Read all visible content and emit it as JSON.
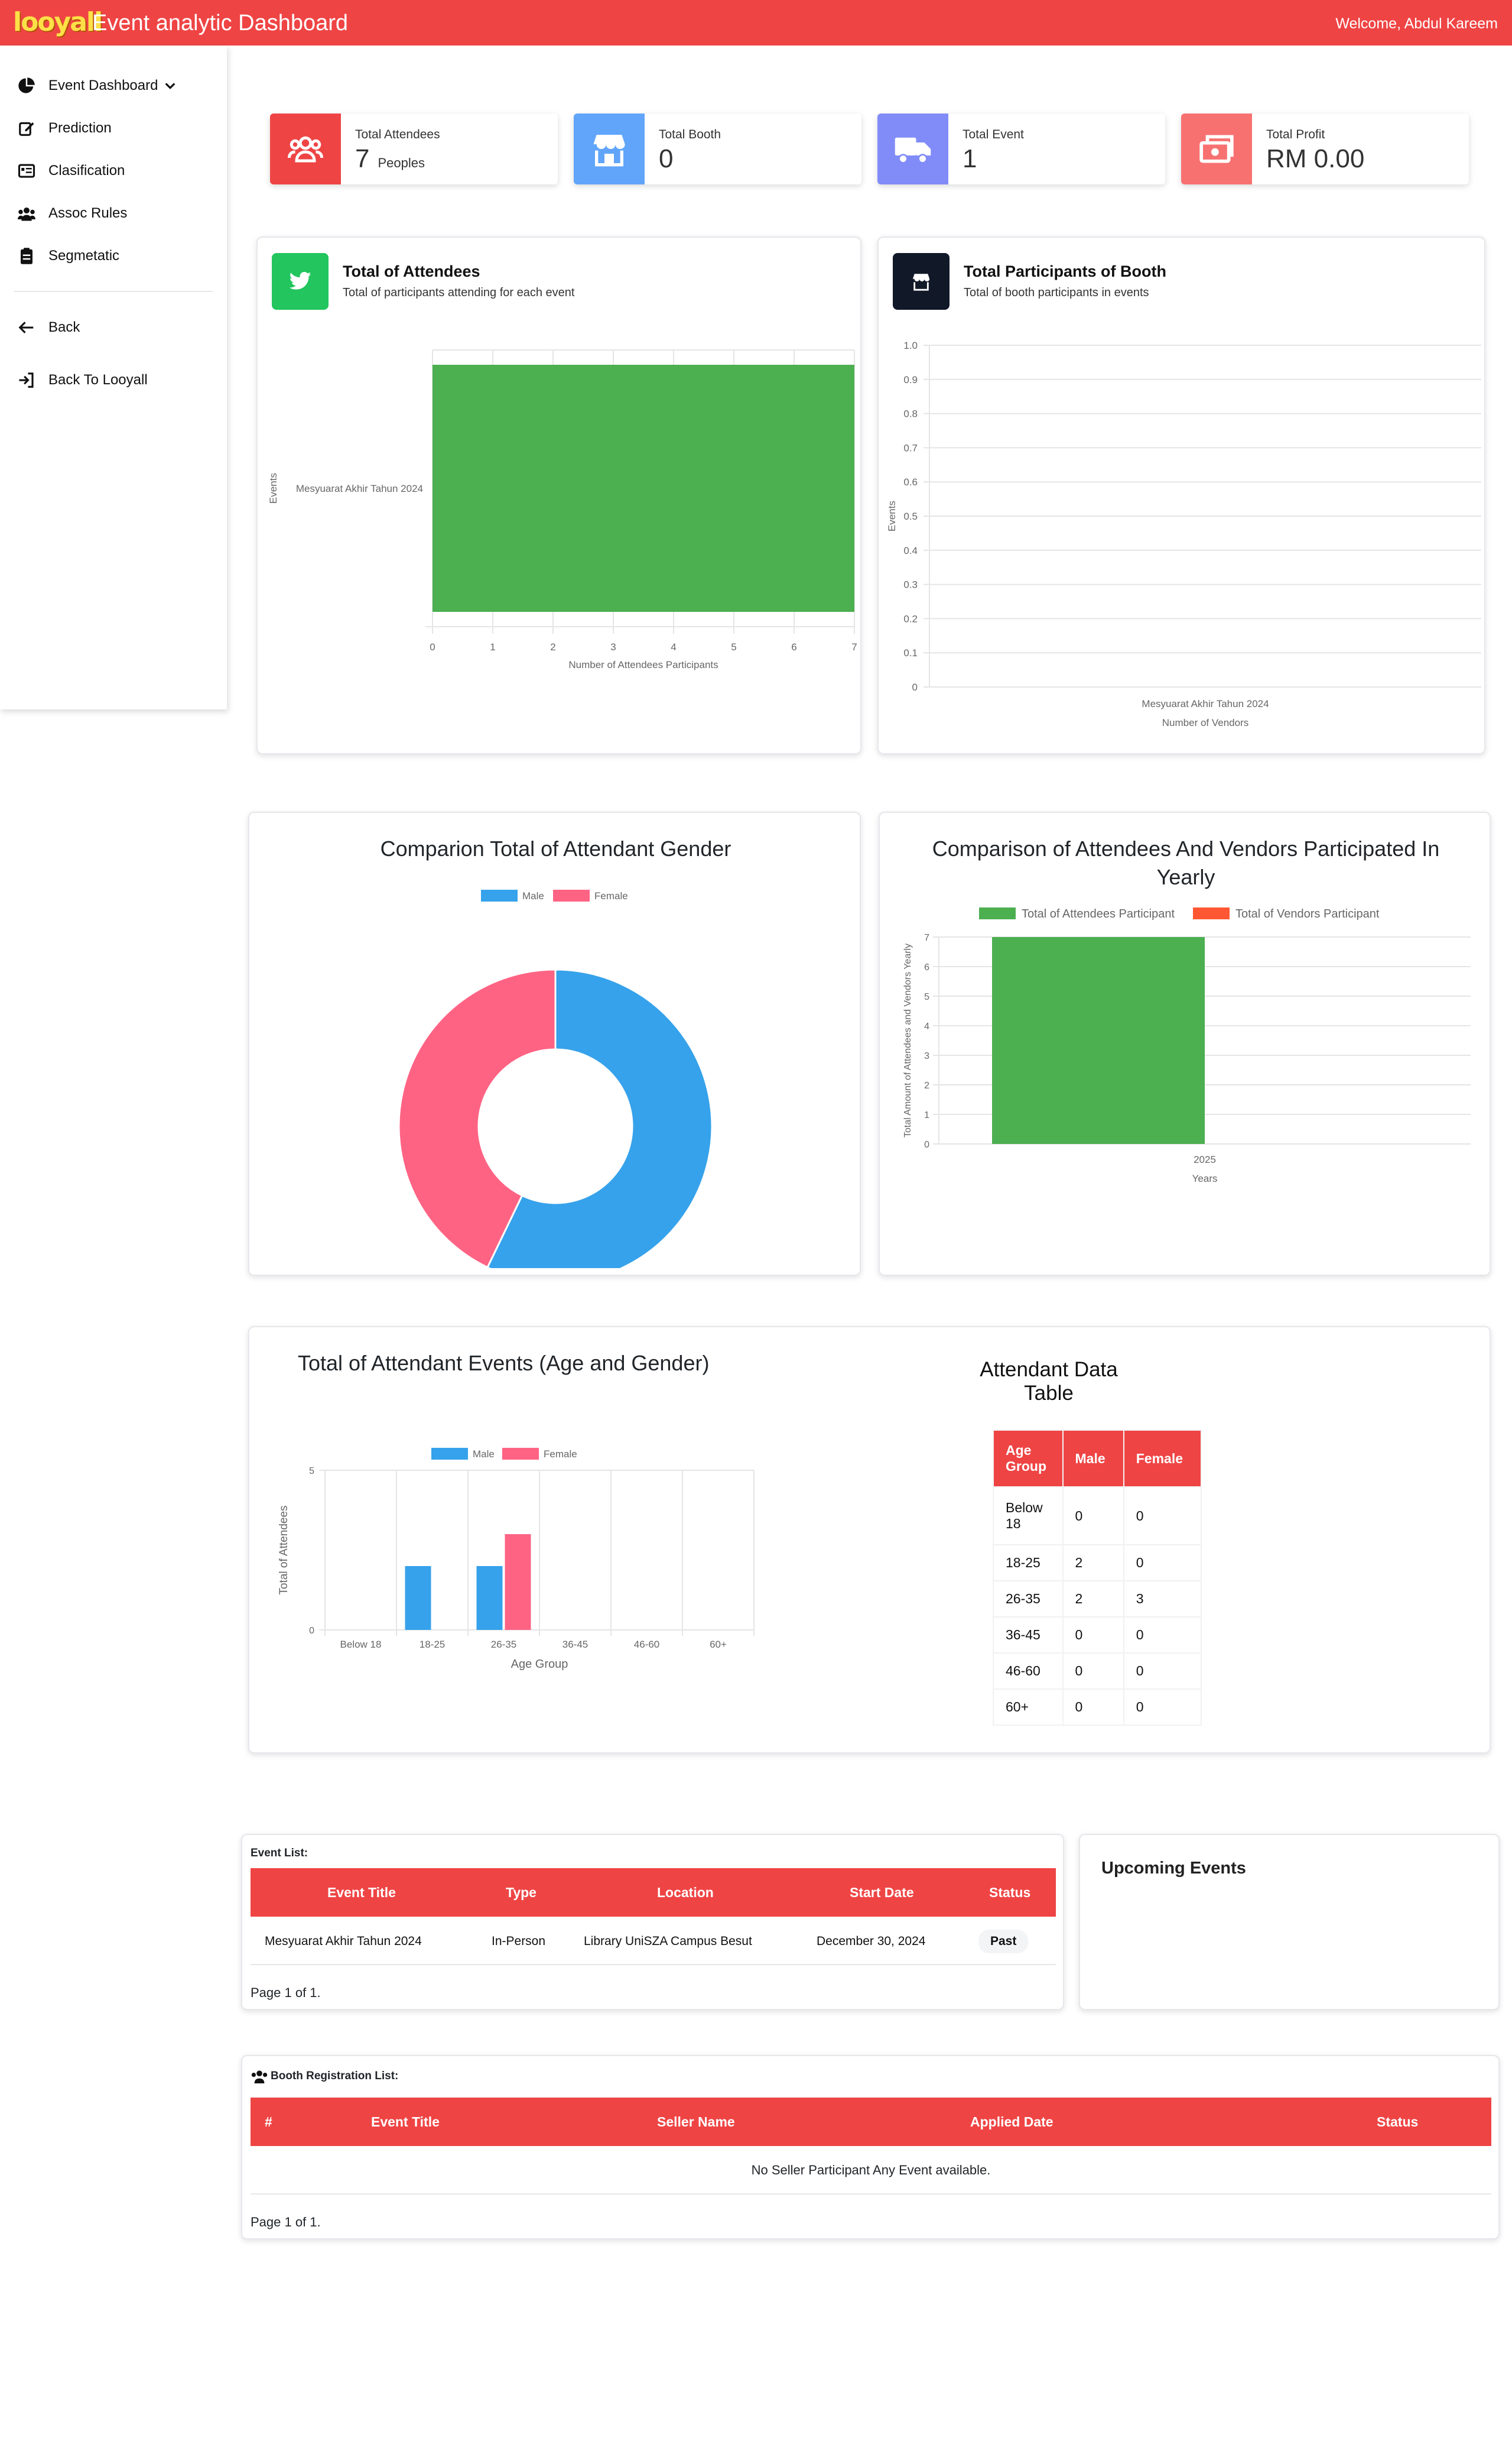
{
  "header": {
    "logo": "looyall",
    "title": "Event analytic Dashboard",
    "welcome": "Welcome, Abdul Kareem"
  },
  "sidebar": {
    "items": [
      {
        "label": "Event Dashboard",
        "icon": "pie-chart-icon"
      },
      {
        "label": "Prediction",
        "icon": "edit-icon"
      },
      {
        "label": "Clasification",
        "icon": "card-list-icon"
      },
      {
        "label": "Assoc Rules",
        "icon": "users-icon"
      },
      {
        "label": "Segmetatic",
        "icon": "clipboard-icon"
      },
      {
        "label": "Back",
        "icon": "arrow-left-icon"
      },
      {
        "label": "Back To Looyall",
        "icon": "sign-in-icon"
      }
    ]
  },
  "stats": [
    {
      "label": "Total Attendees",
      "value": "7",
      "unit": "Peoples",
      "color": "#ef4444",
      "icon": "users-icon"
    },
    {
      "label": "Total Booth",
      "value": "0",
      "unit": "",
      "color": "#60a5fa",
      "icon": "store-icon"
    },
    {
      "label": "Total Event",
      "value": "1",
      "unit": "",
      "color": "#818cf8",
      "icon": "truck-icon"
    },
    {
      "label": "Total Profit",
      "value": "RM 0.00",
      "unit": "",
      "color": "#f87171",
      "icon": "money-icon"
    }
  ],
  "attendees_card": {
    "title": "Total of Attendees",
    "subtitle": "Total of participants attending for each event",
    "icon": "twitter-icon",
    "icon_color": "#22c55e"
  },
  "booth_card": {
    "title": "Total Participants of Booth",
    "subtitle": "Total of booth participants in events",
    "icon": "store-icon",
    "icon_color": "#111827"
  },
  "gender_card": {
    "title": "Comparion Total of Attendant Gender"
  },
  "yearly_card": {
    "title_line1": "Comparison of Attendees And Vendors Participated In",
    "title_line2": "Yearly"
  },
  "age_card": {
    "title": "Total of Attendant Events (Age and Gender)"
  },
  "table_card": {
    "title_line1": "Attendant Data",
    "title_line2": "Table",
    "headers": [
      "Age Group",
      "Male",
      "Female"
    ],
    "rows": [
      [
        "Below 18",
        "0",
        "0"
      ],
      [
        "18-25",
        "2",
        "0"
      ],
      [
        "26-35",
        "2",
        "3"
      ],
      [
        "36-45",
        "0",
        "0"
      ],
      [
        "46-60",
        "0",
        "0"
      ],
      [
        "60+",
        "0",
        "0"
      ]
    ]
  },
  "event_list": {
    "label": "Event List:",
    "headers": [
      "Event Title",
      "Type",
      "Location",
      "Start Date",
      "Status"
    ],
    "rows": [
      [
        "Mesyuarat Akhir Tahun 2024",
        "In-Person",
        "Library UniSZA Campus Besut",
        "December 30, 2024",
        "Past"
      ]
    ],
    "pagination": "Page 1 of 1."
  },
  "upcoming": {
    "title": "Upcoming Events"
  },
  "booth_list": {
    "label": "Booth Registration List:",
    "headers": [
      "#",
      "Event Title",
      "Seller Name",
      "Applied Date",
      "Status"
    ],
    "empty": "No Seller Participant Any Event available.",
    "pagination": "Page 1 of 1."
  },
  "chart_data": [
    {
      "id": "attendees",
      "type": "bar",
      "orientation": "horizontal",
      "categories": [
        "Mesyuarat Akhir Tahun 2024"
      ],
      "values": [
        7
      ],
      "xlabel": "Number of Attendees Participants",
      "ylabel": "Events",
      "xlim": [
        0,
        7
      ],
      "xticks": [
        "0",
        "1",
        "2",
        "3",
        "4",
        "5",
        "6",
        "7"
      ],
      "color": "#4caf50"
    },
    {
      "id": "booth",
      "type": "bar",
      "categories": [
        "Mesyuarat Akhir Tahun 2024"
      ],
      "values": [
        0
      ],
      "xlabel": "Number of Vendors",
      "ylabel": "Events",
      "ylim": [
        0,
        1
      ],
      "yticks": [
        "0",
        "0.1",
        "0.2",
        "0.3",
        "0.4",
        "0.5",
        "0.6",
        "0.7",
        "0.8",
        "0.9",
        "1.0"
      ]
    },
    {
      "id": "gender",
      "type": "pie",
      "labels": [
        "Male",
        "Female"
      ],
      "values": [
        4,
        3
      ],
      "colors": [
        "#36a2eb",
        "#ff6384"
      ]
    },
    {
      "id": "yearly",
      "type": "bar",
      "categories": [
        "2025"
      ],
      "series": [
        {
          "name": "Total of Attendees Participant",
          "values": [
            7
          ],
          "color": "#4caf50"
        },
        {
          "name": "Total of Vendors Participant",
          "values": [
            0
          ],
          "color": "#ff5733"
        }
      ],
      "xlabel": "Years",
      "ylabel": "Total Amount of Attendees and Vendors Yearly",
      "ylim": [
        0,
        7
      ],
      "yticks": [
        "0",
        "1",
        "2",
        "3",
        "4",
        "5",
        "6",
        "7"
      ]
    },
    {
      "id": "age",
      "type": "bar",
      "categories": [
        "Below 18",
        "18-25",
        "26-35",
        "36-45",
        "46-60",
        "60+"
      ],
      "series": [
        {
          "name": "Male",
          "values": [
            0,
            2,
            2,
            0,
            0,
            0
          ],
          "color": "#36a2eb"
        },
        {
          "name": "Female",
          "values": [
            0,
            0,
            3,
            0,
            0,
            0
          ],
          "color": "#ff6384"
        }
      ],
      "xlabel": "Age Group",
      "ylabel": "Total of Attendees",
      "ylim": [
        0,
        5
      ],
      "yticks": [
        "0",
        "5"
      ]
    }
  ]
}
